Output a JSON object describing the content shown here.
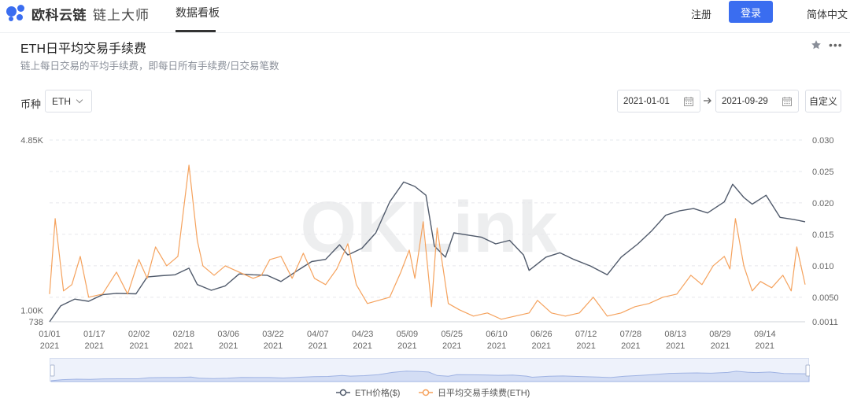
{
  "header": {
    "brand": "欧科云链",
    "product": "链上大师",
    "nav_tab": "数据看板",
    "register": "注册",
    "login": "登录",
    "language": "简体中文"
  },
  "page": {
    "title": "ETH日平均交易手续费",
    "subtitle": "链上每日交易的平均手续费，即每日所有手续费/日交易笔数"
  },
  "filters": {
    "coin_label": "币种",
    "coin_value": "ETH",
    "date_start": "2021-01-01",
    "date_end": "2021-09-29",
    "custom_label": "自定义"
  },
  "colors": {
    "accent": "#3a6df0",
    "price_line": "#505a6b",
    "fee_line": "#f5a25d"
  },
  "watermark": "OKLink",
  "chart_data": {
    "type": "line",
    "left_axis_ticks": [
      "4.85K",
      "1.00K",
      "738"
    ],
    "right_axis_ticks": [
      "0.030",
      "0.025",
      "0.020",
      "0.015",
      "0.010",
      "0.0050",
      "0.0011"
    ],
    "x_tick_labels": [
      [
        "01/01",
        "2021"
      ],
      [
        "01/17",
        "2021"
      ],
      [
        "02/02",
        "2021"
      ],
      [
        "02/18",
        "2021"
      ],
      [
        "03/06",
        "2021"
      ],
      [
        "03/22",
        "2021"
      ],
      [
        "04/07",
        "2021"
      ],
      [
        "04/23",
        "2021"
      ],
      [
        "05/09",
        "2021"
      ],
      [
        "05/25",
        "2021"
      ],
      [
        "06/10",
        "2021"
      ],
      [
        "06/26",
        "2021"
      ],
      [
        "07/12",
        "2021"
      ],
      [
        "07/28",
        "2021"
      ],
      [
        "08/13",
        "2021"
      ],
      [
        "08/29",
        "2021"
      ],
      [
        "09/14",
        "2021"
      ]
    ],
    "x_range": [
      "2021-01-01",
      "2021-09-29"
    ],
    "left_range": [
      738,
      4850
    ],
    "right_range": [
      0.0011,
      0.03
    ],
    "legend_placement": "bottom",
    "grid": true,
    "series": [
      {
        "name": "ETH价格($)",
        "axis": "left",
        "x": [
          "2021-01-01",
          "2021-01-05",
          "2021-01-10",
          "2021-01-15",
          "2021-01-20",
          "2021-01-25",
          "2021-02-01",
          "2021-02-05",
          "2021-02-10",
          "2021-02-15",
          "2021-02-20",
          "2021-02-23",
          "2021-02-28",
          "2021-03-05",
          "2021-03-10",
          "2021-03-15",
          "2021-03-20",
          "2021-03-25",
          "2021-03-31",
          "2021-04-05",
          "2021-04-10",
          "2021-04-15",
          "2021-04-18",
          "2021-04-23",
          "2021-04-28",
          "2021-05-03",
          "2021-05-08",
          "2021-05-12",
          "2021-05-16",
          "2021-05-19",
          "2021-05-23",
          "2021-05-26",
          "2021-05-31",
          "2021-06-05",
          "2021-06-10",
          "2021-06-15",
          "2021-06-20",
          "2021-06-22",
          "2021-06-28",
          "2021-07-03",
          "2021-07-08",
          "2021-07-14",
          "2021-07-20",
          "2021-07-25",
          "2021-07-31",
          "2021-08-05",
          "2021-08-10",
          "2021-08-15",
          "2021-08-20",
          "2021-08-25",
          "2021-08-31",
          "2021-09-03",
          "2021-09-07",
          "2021-09-10",
          "2021-09-15",
          "2021-09-20",
          "2021-09-25",
          "2021-09-29"
        ],
        "values": [
          738,
          1100,
          1250,
          1200,
          1350,
          1380,
          1370,
          1750,
          1780,
          1800,
          1950,
          1580,
          1450,
          1550,
          1820,
          1800,
          1790,
          1650,
          1900,
          2100,
          2150,
          2480,
          2250,
          2400,
          2750,
          3450,
          3900,
          3800,
          3600,
          2450,
          2200,
          2750,
          2700,
          2650,
          2500,
          2580,
          2250,
          1900,
          2200,
          2300,
          2150,
          2000,
          1800,
          2200,
          2500,
          2800,
          3150,
          3250,
          3300,
          3200,
          3450,
          3850,
          3550,
          3400,
          3600,
          3100,
          3050,
          3000
        ]
      },
      {
        "name": "日平均交易手续费(ETH)",
        "axis": "right",
        "x": [
          "2021-01-01",
          "2021-01-03",
          "2021-01-06",
          "2021-01-09",
          "2021-01-12",
          "2021-01-15",
          "2021-01-20",
          "2021-01-25",
          "2021-01-29",
          "2021-02-02",
          "2021-02-05",
          "2021-02-08",
          "2021-02-12",
          "2021-02-16",
          "2021-02-20",
          "2021-02-23",
          "2021-02-25",
          "2021-03-01",
          "2021-03-05",
          "2021-03-10",
          "2021-03-15",
          "2021-03-18",
          "2021-03-21",
          "2021-03-25",
          "2021-03-29",
          "2021-04-02",
          "2021-04-06",
          "2021-04-10",
          "2021-04-14",
          "2021-04-18",
          "2021-04-21",
          "2021-04-25",
          "2021-04-29",
          "2021-05-03",
          "2021-05-07",
          "2021-05-10",
          "2021-05-12",
          "2021-05-15",
          "2021-05-18",
          "2021-05-20",
          "2021-05-24",
          "2021-05-28",
          "2021-06-02",
          "2021-06-07",
          "2021-06-12",
          "2021-06-17",
          "2021-06-22",
          "2021-06-25",
          "2021-06-30",
          "2021-07-05",
          "2021-07-10",
          "2021-07-15",
          "2021-07-20",
          "2021-07-25",
          "2021-07-30",
          "2021-08-04",
          "2021-08-09",
          "2021-08-14",
          "2021-08-19",
          "2021-08-23",
          "2021-08-27",
          "2021-08-31",
          "2021-09-02",
          "2021-09-04",
          "2021-09-07",
          "2021-09-10",
          "2021-09-13",
          "2021-09-17",
          "2021-09-21",
          "2021-09-24",
          "2021-09-26",
          "2021-09-29"
        ],
        "values": [
          0.0055,
          0.0175,
          0.006,
          0.007,
          0.0115,
          0.005,
          0.0055,
          0.009,
          0.0055,
          0.011,
          0.008,
          0.013,
          0.01,
          0.0115,
          0.026,
          0.014,
          0.01,
          0.0085,
          0.01,
          0.009,
          0.008,
          0.0085,
          0.011,
          0.0115,
          0.008,
          0.012,
          0.008,
          0.007,
          0.0095,
          0.0135,
          0.007,
          0.004,
          0.0045,
          0.005,
          0.009,
          0.0125,
          0.008,
          0.017,
          0.0035,
          0.016,
          0.004,
          0.003,
          0.002,
          0.0025,
          0.0015,
          0.002,
          0.0025,
          0.0045,
          0.0025,
          0.002,
          0.0025,
          0.005,
          0.002,
          0.0025,
          0.0035,
          0.004,
          0.005,
          0.0055,
          0.0085,
          0.007,
          0.01,
          0.0115,
          0.0095,
          0.0175,
          0.01,
          0.006,
          0.0075,
          0.0065,
          0.0085,
          0.006,
          0.013,
          0.007
        ]
      }
    ]
  }
}
